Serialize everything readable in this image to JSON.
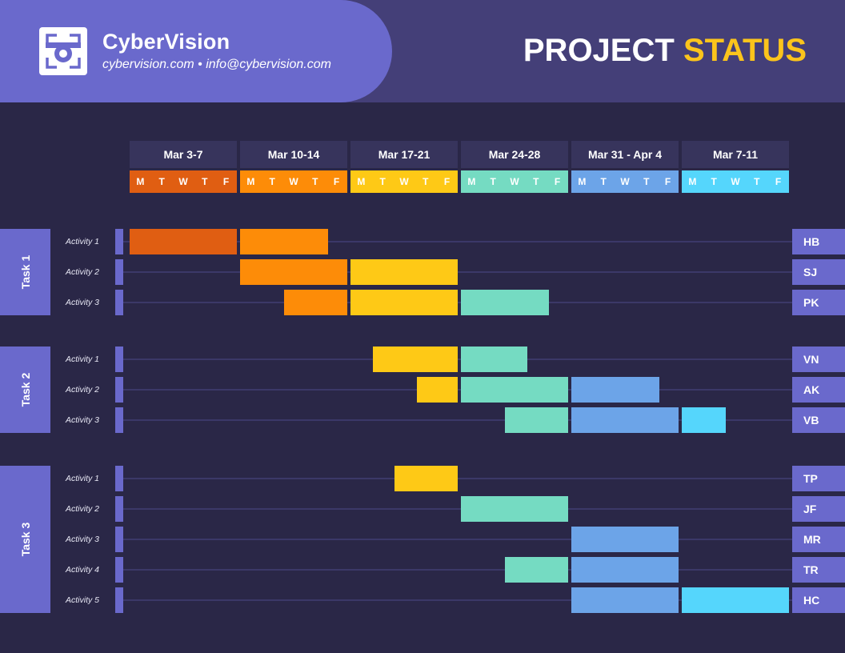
{
  "header": {
    "brand_name": "CyberVision",
    "contact": "cybervision.com • info@cybervision.com",
    "title_main": "PROJECT",
    "title_accent": "STATUS"
  },
  "colors": {
    "background": "#2a2747",
    "brand": "#6a69cc",
    "accent": "#fbc41c"
  },
  "chart_data": {
    "type": "gantt",
    "weeks": [
      {
        "label": "Mar 3-7",
        "days": [
          "M",
          "T",
          "W",
          "T",
          "F"
        ],
        "color": "#e05e12"
      },
      {
        "label": "Mar 10-14",
        "days": [
          "M",
          "T",
          "W",
          "T",
          "F"
        ],
        "color": "#fd8c08"
      },
      {
        "label": "Mar 17-21",
        "days": [
          "M",
          "T",
          "W",
          "T",
          "F"
        ],
        "color": "#fec916"
      },
      {
        "label": "Mar 24-28",
        "days": [
          "M",
          "T",
          "W",
          "T",
          "F"
        ],
        "color": "#75dbc2"
      },
      {
        "label": "Mar 31 - Apr 4",
        "days": [
          "M",
          "T",
          "W",
          "T",
          "F"
        ],
        "color": "#6ca4e8"
      },
      {
        "label": "Mar 7-11",
        "days": [
          "M",
          "T",
          "W",
          "T",
          "F"
        ],
        "color": "#55d6fc"
      }
    ],
    "tasks": [
      {
        "name": "Task 1",
        "activities": [
          {
            "label": "Activity 1",
            "start": 0,
            "end": 1.8,
            "assignee": "HB"
          },
          {
            "label": "Activity 2",
            "start": 1,
            "end": 3,
            "assignee": "SJ"
          },
          {
            "label": "Activity 3",
            "start": 1.4,
            "end": 3.8,
            "assignee": "PK"
          }
        ]
      },
      {
        "name": "Task 2",
        "activities": [
          {
            "label": "Activity 1",
            "start": 2.2,
            "end": 3.6,
            "assignee": "VN"
          },
          {
            "label": "Activity 2",
            "start": 2.6,
            "end": 4.8,
            "assignee": "AK"
          },
          {
            "label": "Activity 3",
            "start": 3.4,
            "end": 5.4,
            "assignee": "VB"
          }
        ]
      },
      {
        "name": "Task 3",
        "activities": [
          {
            "label": "Activity 1",
            "start": 2.4,
            "end": 3,
            "assignee": "TP"
          },
          {
            "label": "Activity 2",
            "start": 3,
            "end": 4,
            "assignee": "JF"
          },
          {
            "label": "Activity 3",
            "start": 4,
            "end": 5,
            "assignee": "MR"
          },
          {
            "label": "Activity 4",
            "start": 3.4,
            "end": 5,
            "assignee": "TR"
          },
          {
            "label": "Activity 5",
            "start": 4,
            "end": 6,
            "assignee": "HC"
          }
        ]
      }
    ]
  }
}
